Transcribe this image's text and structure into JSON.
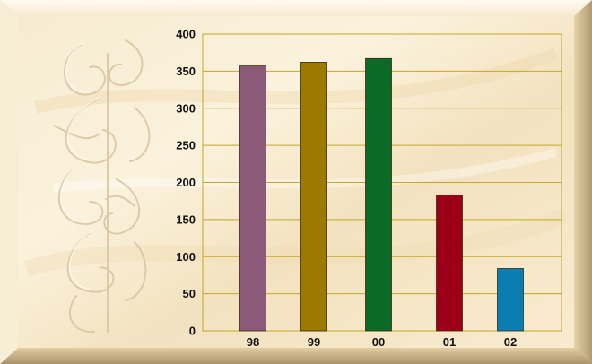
{
  "chart_data": {
    "type": "bar",
    "categories": [
      "98",
      "99",
      "00",
      "01",
      "02"
    ],
    "values": [
      357,
      362,
      367,
      183,
      84
    ],
    "ylim": [
      0,
      400
    ],
    "yticks": [
      0,
      50,
      100,
      150,
      200,
      250,
      300,
      350,
      400
    ],
    "grid": true,
    "legend": "none",
    "title": "",
    "xlabel": "",
    "ylabel": "",
    "bar_colors": [
      "#8a5a78",
      "#9c7a00",
      "#0b6a26",
      "#9c0018",
      "#0a7eb3"
    ],
    "grid_color": "#c2a826",
    "background": "parchment"
  }
}
